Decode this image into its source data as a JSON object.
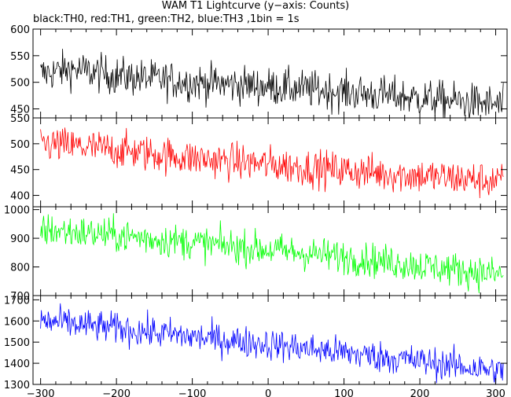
{
  "chart_data": {
    "type": "line",
    "title": "WAM T1 Lightcurve (y−axis: Counts)",
    "subtitle": "black:TH0, red:TH1, green:TH2, blue:TH3 ,1bin = 1s",
    "xlabel": "",
    "ylabel": "",
    "xlim": [
      -310,
      315
    ],
    "x_ticks": [
      -300,
      -200,
      -100,
      0,
      100,
      200,
      300
    ],
    "x_tick_labels": [
      "−300",
      "−200",
      "−100",
      "0",
      "100",
      "200",
      "300"
    ],
    "x_range": [
      -300,
      310
    ],
    "bin_seconds": 1,
    "grid": false,
    "panels": [
      {
        "name": "TH0",
        "color": "#000000",
        "ylim": [
          433,
          600
        ],
        "y_ticks": [
          450,
          500,
          550,
          600
        ],
        "y_tick_labels": [
          "450",
          "500",
          "550",
          "600"
        ],
        "trend": [
          [
            -300,
            515
          ],
          [
            -260,
            525
          ],
          [
            -200,
            512
          ],
          [
            -100,
            500
          ],
          [
            0,
            492
          ],
          [
            100,
            482
          ],
          [
            200,
            470
          ],
          [
            300,
            458
          ],
          [
            310,
            455
          ]
        ],
        "noise_sigma": 18
      },
      {
        "name": "TH1",
        "color": "#ff0000",
        "ylim": [
          378,
          550
        ],
        "y_ticks": [
          400,
          450,
          500,
          550
        ],
        "y_tick_labels": [
          "400",
          "450",
          "500",
          "550"
        ],
        "trend": [
          [
            -300,
            500
          ],
          [
            -200,
            488
          ],
          [
            -100,
            472
          ],
          [
            0,
            460
          ],
          [
            100,
            448
          ],
          [
            200,
            438
          ],
          [
            300,
            428
          ],
          [
            310,
            426
          ]
        ],
        "noise_sigma": 18
      },
      {
        "name": "TH2",
        "color": "#00ff00",
        "ylim": [
          700,
          1010
        ],
        "y_ticks": [
          700,
          800,
          900,
          1000
        ],
        "y_tick_labels": [
          "700",
          "800",
          "900",
          "1000"
        ],
        "trend": [
          [
            -300,
            930
          ],
          [
            -200,
            910
          ],
          [
            -100,
            885
          ],
          [
            0,
            860
          ],
          [
            100,
            835
          ],
          [
            200,
            805
          ],
          [
            300,
            775
          ],
          [
            310,
            772
          ]
        ],
        "noise_sigma": 30
      },
      {
        "name": "TH3",
        "color": "#0000ff",
        "ylim": [
          1300,
          1720
        ],
        "y_ticks": [
          1300,
          1400,
          1500,
          1600,
          1700
        ],
        "y_tick_labels": [
          "1300",
          "1400",
          "1500",
          "1600",
          "1700"
        ],
        "trend": [
          [
            -300,
            1600
          ],
          [
            -200,
            1565
          ],
          [
            -100,
            1525
          ],
          [
            0,
            1490
          ],
          [
            100,
            1450
          ],
          [
            200,
            1410
          ],
          [
            300,
            1365
          ],
          [
            310,
            1360
          ]
        ],
        "noise_sigma": 38
      }
    ]
  }
}
